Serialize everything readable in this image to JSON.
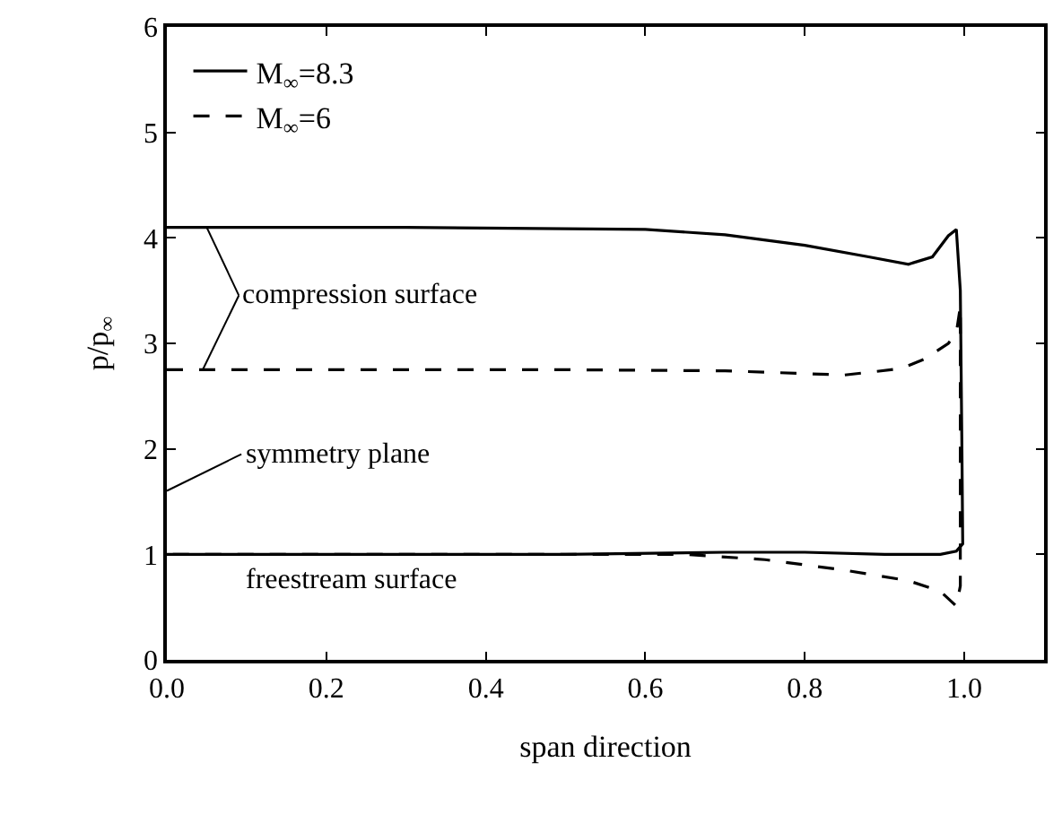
{
  "chart_data": {
    "type": "line",
    "xlabel": "span direction",
    "ylabel": "p/p$_{∞}$",
    "xlim": [
      0,
      1.1
    ],
    "ylim": [
      0,
      6
    ],
    "xticks": [
      {
        "value": 0,
        "label": "0.0"
      },
      {
        "value": 0.2,
        "label": "0.2"
      },
      {
        "value": 0.4,
        "label": "0.4"
      },
      {
        "value": 0.6,
        "label": "0.6"
      },
      {
        "value": 0.8,
        "label": "0.8"
      },
      {
        "value": 1.0,
        "label": "1.0"
      }
    ],
    "yticks": [
      0,
      1,
      2,
      3,
      4,
      5,
      6
    ],
    "legend": "top left",
    "series": [
      {
        "name": "M$_{∞}$=8.3",
        "color": "#000000",
        "line_style": "solid",
        "x": [
          0,
          0.3,
          0.6,
          0.7,
          0.8,
          0.88,
          0.93,
          0.96,
          0.98,
          0.99,
          0.995,
          0.997,
          0.998,
          0.99,
          0.97,
          0.9,
          0.8,
          0.7,
          0.5,
          0
        ],
        "values": [
          4.1,
          4.1,
          4.08,
          4.03,
          3.93,
          3.82,
          3.75,
          3.82,
          4.02,
          4.08,
          3.5,
          2.0,
          1.1,
          1.03,
          1.0,
          1.0,
          1.02,
          1.02,
          1.0,
          1.0
        ]
      },
      {
        "name": "M$_{∞}$=6",
        "color": "#000000",
        "line_style": "dashed",
        "x": [
          0,
          0.5,
          0.7,
          0.85,
          0.92,
          0.95,
          0.98,
          0.99,
          0.995,
          0.995,
          0.99,
          0.97,
          0.93,
          0.85,
          0.75,
          0.65,
          0.5,
          0
        ],
        "values": [
          2.75,
          2.75,
          2.74,
          2.7,
          2.76,
          2.85,
          3.0,
          3.1,
          3.35,
          0.7,
          0.51,
          0.65,
          0.75,
          0.85,
          0.95,
          1.0,
          1.0,
          1.0
        ]
      }
    ],
    "annotations": [
      {
        "text": "compression surface",
        "x": 0.05,
        "y": 4.1
      },
      "symmetry plane",
      "freestream surface"
    ]
  }
}
